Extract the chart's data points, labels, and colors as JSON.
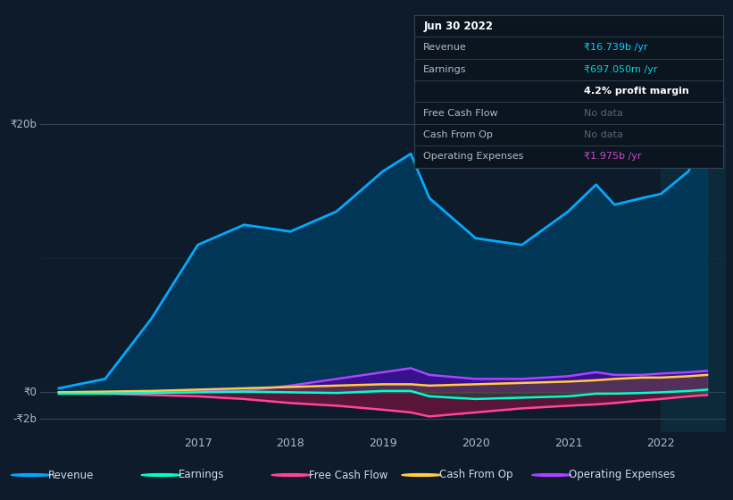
{
  "bg_color": "#0d1b2a",
  "highlight_bg": "#0d2a3a",
  "years": [
    2015.5,
    2016.0,
    2016.5,
    2017.0,
    2017.5,
    2018.0,
    2018.5,
    2019.0,
    2019.3,
    2019.5,
    2020.0,
    2020.5,
    2021.0,
    2021.3,
    2021.5,
    2021.8,
    2022.0,
    2022.3,
    2022.5
  ],
  "revenue": [
    0.3,
    1.0,
    5.5,
    11.0,
    12.5,
    12.0,
    13.5,
    16.5,
    17.8,
    14.5,
    11.5,
    11.0,
    13.5,
    15.5,
    14.0,
    14.5,
    14.8,
    16.5,
    20.5
  ],
  "earnings": [
    -0.1,
    -0.1,
    -0.05,
    0.0,
    0.05,
    0.0,
    -0.05,
    0.1,
    0.1,
    -0.3,
    -0.5,
    -0.4,
    -0.3,
    -0.1,
    -0.1,
    -0.05,
    0.0,
    0.1,
    0.2
  ],
  "free_cash_flow": [
    -0.05,
    -0.1,
    -0.2,
    -0.3,
    -0.5,
    -0.8,
    -1.0,
    -1.3,
    -1.5,
    -1.8,
    -1.5,
    -1.2,
    -1.0,
    -0.9,
    -0.8,
    -0.6,
    -0.5,
    -0.3,
    -0.2
  ],
  "cash_from_op": [
    0.0,
    0.05,
    0.1,
    0.2,
    0.3,
    0.4,
    0.5,
    0.6,
    0.6,
    0.5,
    0.6,
    0.7,
    0.8,
    0.9,
    1.0,
    1.1,
    1.1,
    1.2,
    1.3
  ],
  "operating_expenses": [
    0.0,
    0.0,
    0.05,
    0.1,
    0.1,
    0.5,
    1.0,
    1.5,
    1.8,
    1.3,
    1.0,
    1.0,
    1.2,
    1.5,
    1.3,
    1.3,
    1.4,
    1.5,
    1.6
  ],
  "revenue_color": "#00aaff",
  "earnings_color": "#00ffcc",
  "free_cash_flow_color": "#ff4499",
  "cash_from_op_color": "#ffcc44",
  "operating_expenses_color": "#aa44ff",
  "highlight_x": 2022.0,
  "ylim_min": -3.0,
  "ylim_max": 22.0,
  "ytick_labels": [
    "₹20b",
    "₹0",
    "-₹2b"
  ],
  "ytick_vals": [
    20,
    0,
    -2
  ],
  "xticks": [
    2017,
    2018,
    2019,
    2020,
    2021,
    2022
  ],
  "legend_items": [
    "Revenue",
    "Earnings",
    "Free Cash Flow",
    "Cash From Op",
    "Operating Expenses"
  ],
  "legend_colors": [
    "#00aaff",
    "#00ffcc",
    "#ff4499",
    "#ffcc44",
    "#aa44ff"
  ],
  "info_rows": [
    {
      "type": "title",
      "left": "Jun 30 2022",
      "right": "",
      "right_color": "#ffffff"
    },
    {
      "type": "row",
      "left": "Revenue",
      "right": "₹16.739b /yr",
      "right_color": "#00d4ff"
    },
    {
      "type": "row",
      "left": "Earnings",
      "right": "₹697.050m /yr",
      "right_color": "#00d4d4"
    },
    {
      "type": "sub",
      "left": "",
      "right": "4.2% profit margin",
      "right_color": "#ffffff"
    },
    {
      "type": "row",
      "left": "Free Cash Flow",
      "right": "No data",
      "right_color": "#556677"
    },
    {
      "type": "row",
      "left": "Cash From Op",
      "right": "No data",
      "right_color": "#556677"
    },
    {
      "type": "row",
      "left": "Operating Expenses",
      "right": "₹1.975b /yr",
      "right_color": "#cc44cc"
    }
  ]
}
